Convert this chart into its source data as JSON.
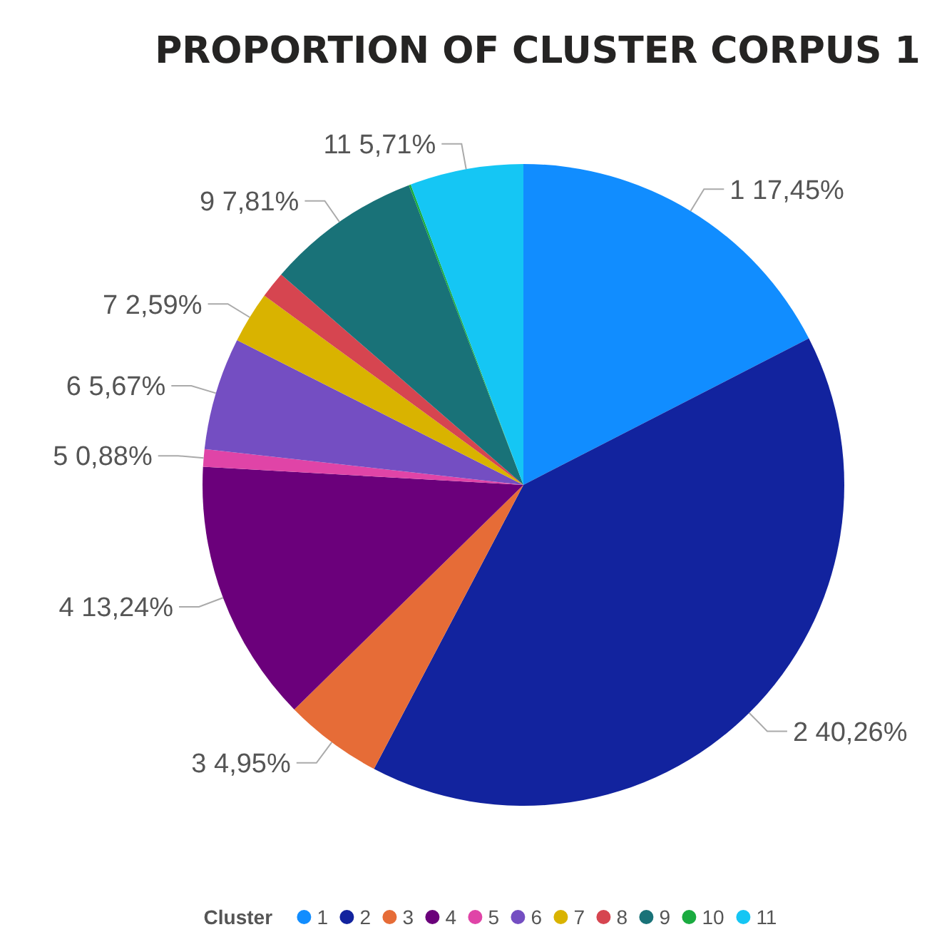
{
  "chart_data": {
    "type": "pie",
    "title": "PROPORTION OF CLUSTER CORPUS 1",
    "legend_title": "Cluster",
    "legend": "bottom",
    "categories": [
      "1",
      "2",
      "3",
      "4",
      "5",
      "6",
      "7",
      "8",
      "9",
      "10",
      "11"
    ],
    "values": [
      17.45,
      40.26,
      4.95,
      13.24,
      0.88,
      5.67,
      2.59,
      1.34,
      7.81,
      0.1,
      5.71
    ],
    "value_labels": [
      "1 17,45%",
      "2 40,26%",
      "3 4,95%",
      "4 13,24%",
      "5 0,88%",
      "6 5,67%",
      "7 2,59%",
      null,
      "9 7,81%",
      null,
      "11 5,71%"
    ],
    "colors": [
      "#118dff",
      "#12239e",
      "#e66c37",
      "#6b007b",
      "#e044a7",
      "#744ec2",
      "#d9b300",
      "#d64550",
      "#197278",
      "#1aab40",
      "#15c6f4"
    ]
  }
}
